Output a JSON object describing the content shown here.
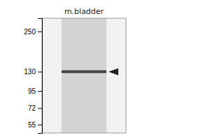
{
  "chart_data": {
    "type": "blot",
    "categories": [
      "m.bladder"
    ],
    "values": [
      130
    ],
    "color": "#444444",
    "log": "y",
    "ylim": [
      48,
      310
    ],
    "yticks": [
      250,
      130,
      95,
      72,
      55
    ]
  }
}
